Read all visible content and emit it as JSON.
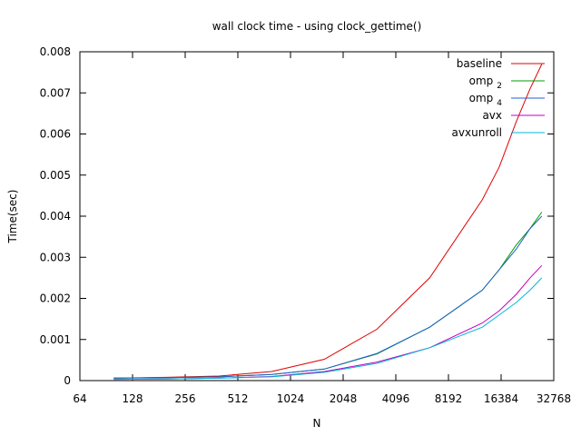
{
  "chart_data": {
    "type": "line",
    "title": "wall clock time - using clock_gettime()",
    "xlabel": "N",
    "ylabel": "Time(sec)",
    "xscale": "log2",
    "xlim": [
      64,
      32768
    ],
    "ylim": [
      0,
      0.008
    ],
    "xticks": [
      64,
      128,
      256,
      512,
      1024,
      2048,
      4096,
      8192,
      16384,
      32768
    ],
    "xtick_labels": [
      "64",
      "128",
      "256",
      "512",
      "1024",
      "2048",
      "4096",
      "8192",
      "16384",
      "32768"
    ],
    "yticks": [
      0,
      0.001,
      0.002,
      0.003,
      0.004,
      0.005,
      0.006,
      0.007,
      0.008
    ],
    "ytick_labels": [
      "0",
      "0.001",
      "0.002",
      "0.003",
      "0.004",
      "0.005",
      "0.006",
      "0.007",
      "0.008"
    ],
    "grid": false,
    "legend_position": "top-right",
    "x": [
      100,
      200,
      400,
      800,
      1600,
      3200,
      6400,
      12800,
      16000,
      20000,
      24000,
      28000
    ],
    "series": [
      {
        "name": "baseline",
        "label_main": "baseline",
        "label_sub": "",
        "color": "#e00000",
        "values": [
          6e-05,
          8e-05,
          0.00011,
          0.00022,
          0.00052,
          0.00125,
          0.0025,
          0.0044,
          0.0052,
          0.0063,
          0.0071,
          0.0077
        ]
      },
      {
        "name": "omp 2",
        "label_main": "omp",
        "label_sub": "2",
        "color": "#009e00",
        "values": [
          6e-05,
          7e-05,
          9e-05,
          0.00015,
          0.00028,
          0.00065,
          0.0013,
          0.0022,
          0.0027,
          0.0033,
          0.0037,
          0.0041
        ]
      },
      {
        "name": "omp 4",
        "label_main": "omp",
        "label_sub": "4",
        "color": "#2060d0",
        "values": [
          6e-05,
          7e-05,
          9e-05,
          0.00015,
          0.00028,
          0.00066,
          0.0013,
          0.0022,
          0.0027,
          0.0032,
          0.0037,
          0.004
        ]
      },
      {
        "name": "avx",
        "label_main": "avx",
        "label_sub": "",
        "color": "#c000c0",
        "values": [
          3e-05,
          4e-05,
          6e-05,
          0.0001,
          0.00022,
          0.00045,
          0.0008,
          0.0014,
          0.0017,
          0.0021,
          0.0025,
          0.0028
        ]
      },
      {
        "name": "avxunroll",
        "label_main": "avxunroll",
        "label_sub": "",
        "color": "#00b8d8",
        "values": [
          3e-05,
          4e-05,
          6e-05,
          9e-05,
          0.0002,
          0.00042,
          0.0008,
          0.0013,
          0.0016,
          0.0019,
          0.0022,
          0.0025
        ]
      }
    ]
  }
}
